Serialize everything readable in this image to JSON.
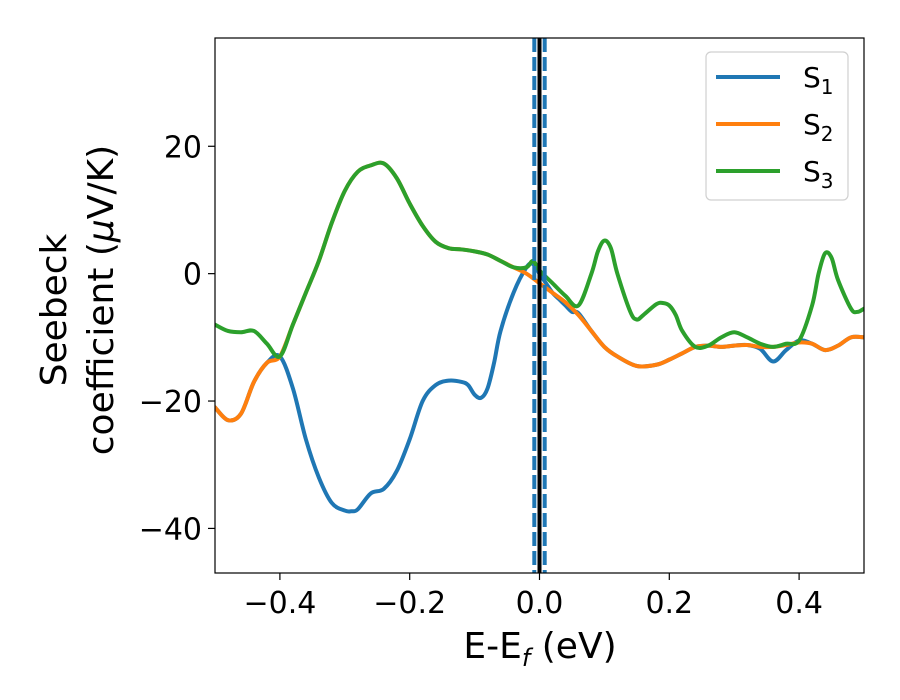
{
  "chart_data": {
    "type": "line",
    "xlabel": "E-E",
    "xlabel_sub": "f",
    "xlabel_unit": " (eV)",
    "ylabel_line1": "Seebeck",
    "ylabel_line2": "coefficient  (",
    "ylabel_mu": "μ",
    "ylabel_unit": "V/K)",
    "xlim": [
      -0.5,
      0.5
    ],
    "ylim": [
      -47,
      37
    ],
    "xticks": [
      -0.4,
      -0.2,
      0.0,
      0.2,
      0.4
    ],
    "xtick_labels": [
      "−0.4",
      "−0.2",
      "0.0",
      "0.2",
      "0.4"
    ],
    "yticks": [
      -40,
      -20,
      0,
      20
    ],
    "ytick_labels": [
      "−40",
      "−20",
      "0",
      "20"
    ],
    "grid": false,
    "legend_position": "top-right",
    "vertical_lines": [
      {
        "x": 0.0,
        "style": "solid",
        "color": "#000000"
      },
      {
        "x": -0.008,
        "style": "dashed",
        "color": "#1f77b4"
      },
      {
        "x": 0.008,
        "style": "dashed",
        "color": "#1f77b4"
      }
    ],
    "series": [
      {
        "name": "S",
        "sub": "1",
        "color": "#1f77b4",
        "x": [
          -0.5,
          -0.48,
          -0.46,
          -0.44,
          -0.42,
          -0.4,
          -0.38,
          -0.36,
          -0.34,
          -0.32,
          -0.3,
          -0.29,
          -0.28,
          -0.26,
          -0.24,
          -0.22,
          -0.2,
          -0.18,
          -0.16,
          -0.14,
          -0.12,
          -0.11,
          -0.1,
          -0.09,
          -0.08,
          -0.07,
          -0.06,
          -0.04,
          -0.02,
          -0.01,
          0.0,
          0.01,
          0.02,
          0.03,
          0.04,
          0.05,
          0.06,
          0.08,
          0.1,
          0.12,
          0.15,
          0.18,
          0.2,
          0.22,
          0.24,
          0.26,
          0.28,
          0.3,
          0.32,
          0.34,
          0.36,
          0.38,
          0.4,
          0.42,
          0.44,
          0.46,
          0.48,
          0.5
        ],
        "y": [
          -21,
          -23,
          -22,
          -17,
          -14,
          -13,
          -18,
          -26,
          -32,
          -36,
          -37.2,
          -37.3,
          -37,
          -34.5,
          -33.8,
          -31,
          -26,
          -20,
          -17.5,
          -16.8,
          -17,
          -17.5,
          -19,
          -19.5,
          -18,
          -14,
          -9,
          -3,
          1,
          1.5,
          0,
          -1.5,
          -3,
          -4,
          -5,
          -6,
          -6.2,
          -9,
          -11.5,
          -13,
          -14.5,
          -14.3,
          -13.5,
          -12.5,
          -11.5,
          -11.3,
          -11.5,
          -11.3,
          -11.2,
          -11.8,
          -13.8,
          -12,
          -10.5,
          -11,
          -12,
          -11.3,
          -10,
          -10
        ]
      },
      {
        "name": "S",
        "sub": "2",
        "color": "#ff7f0e",
        "x": [
          -0.5,
          -0.48,
          -0.46,
          -0.44,
          -0.42,
          -0.4,
          -0.38,
          -0.36,
          -0.34,
          -0.32,
          -0.3,
          -0.28,
          -0.26,
          -0.24,
          -0.22,
          -0.2,
          -0.18,
          -0.16,
          -0.14,
          -0.12,
          -0.1,
          -0.08,
          -0.06,
          -0.04,
          -0.02,
          0.0,
          0.02,
          0.04,
          0.06,
          0.08,
          0.1,
          0.12,
          0.15,
          0.18,
          0.2,
          0.22,
          0.24,
          0.26,
          0.28,
          0.3,
          0.32,
          0.34,
          0.36,
          0.38,
          0.4,
          0.42,
          0.44,
          0.46,
          0.48,
          0.5
        ],
        "y": [
          -21,
          -23,
          -22,
          -17,
          -14,
          -13,
          -8,
          -3,
          2,
          8,
          13,
          16,
          17,
          17.3,
          15,
          11,
          7.5,
          5,
          4,
          3.8,
          3.5,
          3,
          2,
          1,
          0,
          -1.5,
          -3,
          -4.5,
          -6.5,
          -9,
          -11.5,
          -13,
          -14.5,
          -14.3,
          -13.5,
          -12.5,
          -11.5,
          -11.3,
          -11.5,
          -11.3,
          -11.2,
          -11.5,
          -11.5,
          -11.2,
          -10.8,
          -11,
          -12,
          -11.3,
          -10,
          -10
        ]
      },
      {
        "name": "S",
        "sub": "3",
        "color": "#2ca02c",
        "x": [
          -0.5,
          -0.48,
          -0.46,
          -0.44,
          -0.42,
          -0.4,
          -0.38,
          -0.36,
          -0.34,
          -0.32,
          -0.3,
          -0.28,
          -0.26,
          -0.24,
          -0.22,
          -0.2,
          -0.18,
          -0.16,
          -0.14,
          -0.12,
          -0.1,
          -0.08,
          -0.06,
          -0.04,
          -0.02,
          -0.01,
          0.0,
          0.02,
          0.04,
          0.06,
          0.08,
          0.09,
          0.1,
          0.11,
          0.12,
          0.14,
          0.15,
          0.16,
          0.18,
          0.19,
          0.2,
          0.21,
          0.22,
          0.24,
          0.26,
          0.28,
          0.3,
          0.32,
          0.34,
          0.36,
          0.38,
          0.4,
          0.42,
          0.43,
          0.44,
          0.45,
          0.46,
          0.48,
          0.49,
          0.5
        ],
        "y": [
          -8,
          -9,
          -9.2,
          -9,
          -11,
          -13,
          -8,
          -3,
          2,
          8,
          13,
          16,
          17,
          17.3,
          15,
          11,
          7.5,
          5,
          4,
          3.8,
          3.5,
          3,
          2,
          1,
          1,
          2,
          0.5,
          -1.5,
          -3.5,
          -5,
          0,
          3.5,
          5.2,
          4,
          0,
          -6,
          -7.2,
          -6.5,
          -4.8,
          -4.6,
          -5,
          -6.5,
          -9,
          -11.5,
          -11.3,
          -10,
          -9.2,
          -10,
          -11,
          -11.5,
          -11,
          -10.5,
          -5,
          0,
          3.2,
          2.5,
          -1,
          -5.5,
          -6,
          -5.5
        ]
      }
    ]
  }
}
